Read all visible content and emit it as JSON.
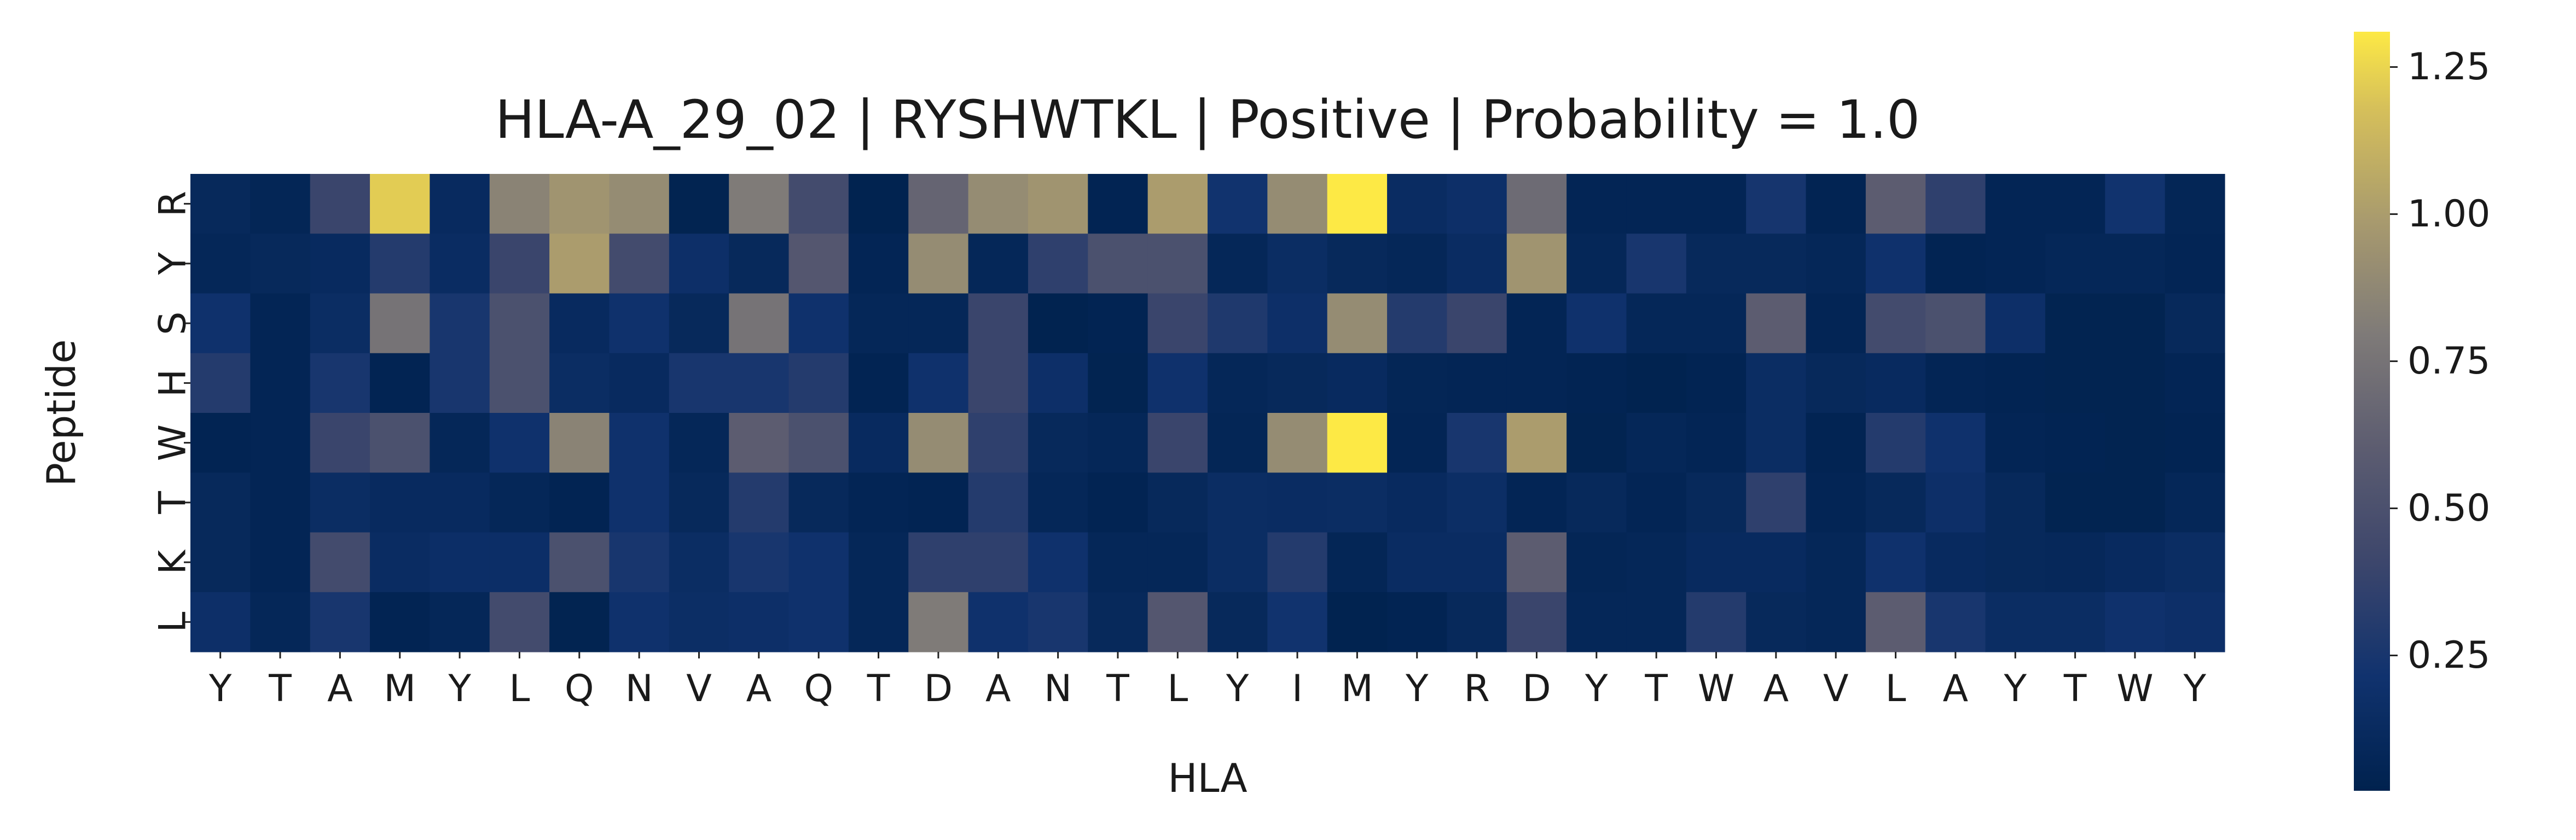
{
  "chart_data": {
    "type": "heatmap",
    "title": "HLA-A_29_02 | RYSHWTKL | Positive | Probability = 1.0",
    "xlabel": "HLA",
    "ylabel": "Peptide",
    "x_categories": [
      "Y",
      "T",
      "A",
      "M",
      "Y",
      "L",
      "Q",
      "N",
      "V",
      "A",
      "Q",
      "T",
      "D",
      "A",
      "N",
      "T",
      "L",
      "Y",
      "I",
      "M",
      "Y",
      "R",
      "D",
      "Y",
      "T",
      "W",
      "A",
      "V",
      "L",
      "A",
      "Y",
      "T",
      "W",
      "Y"
    ],
    "y_categories": [
      "R",
      "Y",
      "S",
      "H",
      "W",
      "T",
      "K",
      "L"
    ],
    "colormap": "cividis",
    "vmin": 0.02,
    "vmax": 1.31,
    "colorbar_ticks": [
      0.25,
      0.5,
      0.75,
      1.0,
      1.25
    ],
    "colorbar_tick_labels": [
      "0.25",
      "0.50",
      "0.75",
      "1.00",
      "1.25"
    ],
    "values": [
      [
        0.1,
        0.07,
        0.4,
        1.22,
        0.12,
        0.85,
        0.95,
        0.9,
        0.04,
        0.8,
        0.45,
        0.03,
        0.65,
        0.9,
        0.95,
        0.05,
        1.0,
        0.22,
        0.9,
        1.31,
        0.14,
        0.18,
        0.7,
        0.06,
        0.06,
        0.06,
        0.24,
        0.05,
        0.6,
        0.35,
        0.06,
        0.06,
        0.22,
        0.07
      ],
      [
        0.08,
        0.1,
        0.12,
        0.3,
        0.14,
        0.4,
        1.0,
        0.45,
        0.18,
        0.1,
        0.55,
        0.06,
        0.9,
        0.08,
        0.35,
        0.5,
        0.5,
        0.08,
        0.15,
        0.1,
        0.08,
        0.14,
        0.95,
        0.08,
        0.25,
        0.1,
        0.1,
        0.08,
        0.2,
        0.05,
        0.06,
        0.08,
        0.08,
        0.06
      ],
      [
        0.2,
        0.06,
        0.15,
        0.75,
        0.25,
        0.5,
        0.12,
        0.2,
        0.1,
        0.75,
        0.2,
        0.08,
        0.08,
        0.4,
        0.03,
        0.05,
        0.4,
        0.28,
        0.18,
        0.9,
        0.3,
        0.4,
        0.06,
        0.2,
        0.08,
        0.08,
        0.6,
        0.06,
        0.45,
        0.5,
        0.18,
        0.04,
        0.04,
        0.1
      ],
      [
        0.3,
        0.06,
        0.25,
        0.05,
        0.25,
        0.5,
        0.15,
        0.12,
        0.25,
        0.25,
        0.3,
        0.05,
        0.2,
        0.4,
        0.18,
        0.04,
        0.2,
        0.08,
        0.1,
        0.12,
        0.07,
        0.06,
        0.06,
        0.05,
        0.03,
        0.05,
        0.15,
        0.1,
        0.12,
        0.06,
        0.05,
        0.04,
        0.04,
        0.06
      ],
      [
        0.05,
        0.06,
        0.4,
        0.5,
        0.08,
        0.2,
        0.85,
        0.2,
        0.08,
        0.6,
        0.5,
        0.12,
        0.9,
        0.35,
        0.1,
        0.08,
        0.4,
        0.07,
        0.9,
        1.31,
        0.06,
        0.25,
        1.0,
        0.04,
        0.08,
        0.06,
        0.15,
        0.05,
        0.3,
        0.2,
        0.06,
        0.05,
        0.04,
        0.05
      ],
      [
        0.1,
        0.06,
        0.15,
        0.12,
        0.12,
        0.08,
        0.05,
        0.2,
        0.1,
        0.3,
        0.1,
        0.06,
        0.05,
        0.3,
        0.08,
        0.05,
        0.1,
        0.15,
        0.14,
        0.15,
        0.12,
        0.16,
        0.06,
        0.1,
        0.06,
        0.1,
        0.35,
        0.06,
        0.1,
        0.18,
        0.1,
        0.04,
        0.04,
        0.08
      ],
      [
        0.1,
        0.06,
        0.45,
        0.14,
        0.17,
        0.17,
        0.5,
        0.25,
        0.15,
        0.25,
        0.2,
        0.08,
        0.35,
        0.35,
        0.2,
        0.08,
        0.08,
        0.15,
        0.3,
        0.07,
        0.14,
        0.14,
        0.6,
        0.07,
        0.08,
        0.12,
        0.12,
        0.08,
        0.2,
        0.12,
        0.1,
        0.09,
        0.12,
        0.15
      ],
      [
        0.18,
        0.08,
        0.25,
        0.05,
        0.08,
        0.45,
        0.04,
        0.2,
        0.16,
        0.18,
        0.2,
        0.08,
        0.8,
        0.2,
        0.25,
        0.1,
        0.55,
        0.1,
        0.22,
        0.03,
        0.05,
        0.1,
        0.4,
        0.08,
        0.08,
        0.3,
        0.1,
        0.08,
        0.6,
        0.25,
        0.15,
        0.15,
        0.2,
        0.18
      ]
    ]
  }
}
